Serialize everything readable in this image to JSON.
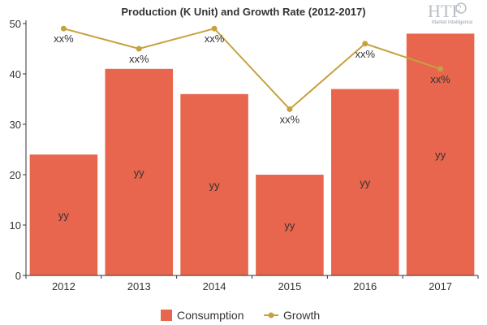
{
  "chart_data": {
    "type": "bar",
    "title": "Production (K Unit) and Growth Rate (2012-2017)",
    "categories": [
      "2012",
      "2013",
      "2014",
      "2015",
      "2016",
      "2017"
    ],
    "series": [
      {
        "name": "Consumption",
        "type": "bar",
        "color": "#e8664d",
        "values": [
          24,
          41,
          36,
          20,
          37,
          48
        ],
        "labels": [
          "yy",
          "yy",
          "yy",
          "yy",
          "yy",
          "yy"
        ]
      },
      {
        "name": "Growth",
        "type": "line",
        "color": "#c6a23e",
        "values": [
          49,
          45,
          49,
          33,
          46,
          41
        ],
        "labels": [
          "xx%",
          "xx%",
          "xx%",
          "xx%",
          "xx%",
          "xx%"
        ]
      }
    ],
    "ylim": [
      0,
      50
    ],
    "yticks": [
      0,
      10,
      20,
      30,
      40,
      50
    ],
    "legend_position": "bottom-center",
    "grid": false
  },
  "logo": {
    "text": "HTF",
    "subtext": "Market Intelligence"
  }
}
